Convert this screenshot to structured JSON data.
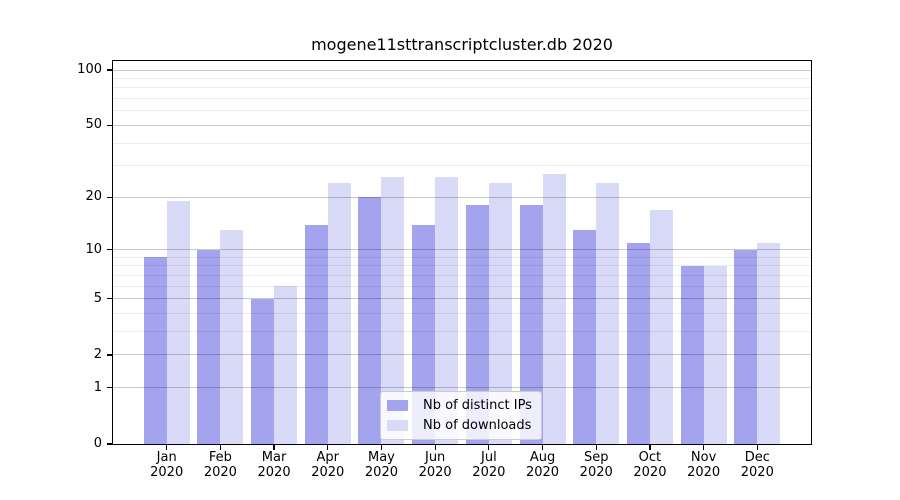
{
  "page": {
    "background": "#ffffff"
  },
  "chart_data": {
    "type": "bar",
    "title": "mogene11sttranscriptcluster.db 2020",
    "categories": [
      "Jan",
      "Feb",
      "Mar",
      "Apr",
      "May",
      "Jun",
      "Jul",
      "Aug",
      "Sep",
      "Oct",
      "Nov",
      "Dec"
    ],
    "category_year": "2020",
    "series": [
      {
        "name": "Nb of distinct IPs",
        "color": "#a3a3ee",
        "values": [
          9,
          10,
          5,
          14,
          20,
          14,
          18,
          18,
          13,
          11,
          8,
          10
        ]
      },
      {
        "name": "Nb of downloads",
        "color": "#d9d9f8",
        "values": [
          19,
          13,
          6,
          24,
          26,
          26,
          24,
          27,
          24,
          17,
          8,
          11
        ]
      }
    ],
    "xlabel": "",
    "ylabel": "",
    "y_scale": "log1p",
    "y_ticks": [
      0,
      1,
      2,
      5,
      10,
      20,
      50,
      100
    ],
    "y_minor_gridlines": [
      3,
      4,
      6,
      7,
      8,
      9,
      30,
      40,
      60,
      70,
      80,
      90
    ],
    "ylim": [
      0,
      112
    ],
    "grid": "major and minor horizontal gridlines drawn over bars",
    "legend_position": "lower center",
    "colors": {
      "axis": "#000000",
      "major_grid": "#c9c9c9",
      "minor_grid": "#e9e9e9",
      "figure_background": "#ffffff"
    }
  }
}
